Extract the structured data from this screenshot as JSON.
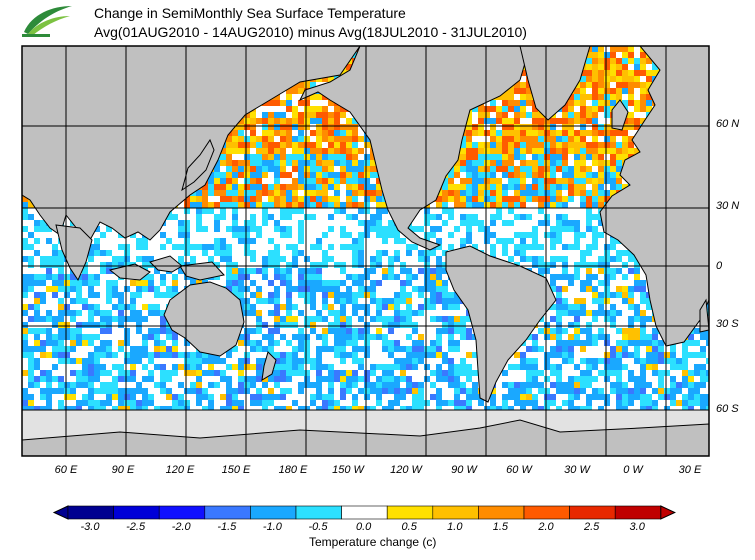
{
  "title_line1": "Change in SemiMonthly Sea Surface Temperature",
  "title_line2": "Avg(01AUG2010 - 14AUG2010) minus Avg(18JUL2010 - 31JUL2010)",
  "lon_labels": [
    "60 E",
    "90 E",
    "120 E",
    "150 E",
    "180 E",
    "150 W",
    "120 W",
    "90 W",
    "60 W",
    "30 W",
    "0 W",
    "30 E"
  ],
  "lat_labels": [
    "60 N",
    "30 N",
    "0",
    "30 S",
    "60 S"
  ],
  "colorbar": {
    "ticks": [
      "-3.0",
      "-2.5",
      "-2.0",
      "-1.5",
      "-1.0",
      "-0.5",
      "0.0",
      "0.5",
      "1.0",
      "1.5",
      "2.0",
      "2.5",
      "3.0"
    ],
    "colors": [
      "#000090",
      "#0000d8",
      "#1010ff",
      "#3a78ff",
      "#1aa8ff",
      "#2ce0ff",
      "#ffffff",
      "#ffe000",
      "#ffc000",
      "#ff8c00",
      "#ff5a00",
      "#e82800",
      "#c00000"
    ],
    "label": "Temperature change  (c)"
  },
  "land_color": "#c0c0c0",
  "ice_color": "#e0e0e0"
}
